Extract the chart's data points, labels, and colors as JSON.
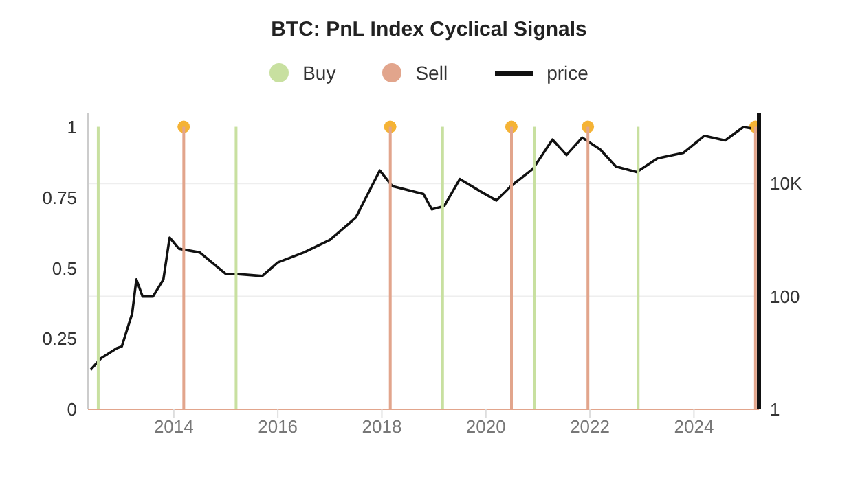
{
  "chart_data": {
    "type": "bar",
    "title": "BTC: PnL Index Cyclical Signals",
    "legend": "top",
    "grid": "y",
    "xlim": [
      2012.35,
      2025.25
    ],
    "xticks": [
      2014,
      2016,
      2018,
      2020,
      2022,
      2024
    ],
    "ylim": [
      0,
      1.05
    ],
    "yticks": [
      0,
      0.25,
      0.5,
      0.75,
      1
    ],
    "y2lim": [
      1,
      180000
    ],
    "y2ticks": [
      1,
      100,
      {
        "value": 10000,
        "label": "10K"
      }
    ],
    "log": "y2",
    "series": [
      {
        "type": "scatter",
        "color": "#f5b335",
        "marker": "circle",
        "x": [
          2014.19,
          2018.16,
          2020.49,
          2021.96,
          2025.18
        ],
        "values": [
          1,
          1,
          1,
          1,
          1
        ]
      },
      {
        "name": "Buy",
        "color": "#c8e0a0",
        "marker": "none",
        "x": [
          2012.55,
          2015.2,
          2019.17,
          2020.94,
          2022.93
        ],
        "values": [
          1,
          1,
          1,
          1,
          1
        ]
      },
      {
        "name": "Sell",
        "color": "#e2a58c",
        "marker": "none",
        "x": [
          2014.19,
          2018.16,
          2020.49,
          2021.96,
          2025.18
        ],
        "values": [
          1,
          1,
          1,
          1,
          1
        ]
      },
      {
        "name": "price",
        "type": "line",
        "color": "#111111",
        "axis": "y2",
        "marker": "none",
        "x": [
          2012.4,
          2012.6,
          2012.9,
          2013.0,
          2013.2,
          2013.28,
          2013.4,
          2013.6,
          2013.8,
          2013.92,
          2014.1,
          2014.5,
          2015.0,
          2015.2,
          2015.7,
          2016.0,
          2016.5,
          2017.0,
          2017.5,
          2017.96,
          2018.2,
          2018.8,
          2018.96,
          2019.2,
          2019.5,
          2019.9,
          2020.2,
          2020.5,
          2020.9,
          2021.28,
          2021.55,
          2021.85,
          2022.2,
          2022.5,
          2022.9,
          2023.3,
          2023.8,
          2024.2,
          2024.6,
          2024.95,
          2025.1
        ],
        "values": [
          5,
          8,
          12,
          13,
          50,
          200,
          100,
          100,
          200,
          1100,
          700,
          600,
          250,
          250,
          230,
          400,
          600,
          1000,
          2500,
          17000,
          9000,
          6500,
          3500,
          4000,
          12000,
          7200,
          5000,
          9300,
          18000,
          60000,
          32000,
          65000,
          40000,
          20000,
          16000,
          28000,
          35000,
          70000,
          58000,
          100000,
          95000
        ]
      }
    ]
  }
}
